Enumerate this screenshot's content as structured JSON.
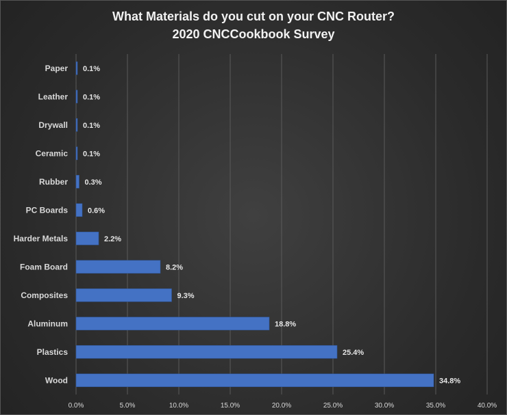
{
  "chart_data": {
    "type": "bar",
    "orientation": "horizontal",
    "title": "What Materials do you cut on your CNC Router?",
    "subtitle": "2020 CNCCookbook Survey",
    "categories": [
      "Paper",
      "Leather",
      "Drywall",
      "Ceramic",
      "Rubber",
      "PC Boards",
      "Harder Metals",
      "Foam Board",
      "Composites",
      "Aluminum",
      "Plastics",
      "Wood"
    ],
    "values": [
      0.1,
      0.1,
      0.1,
      0.1,
      0.3,
      0.6,
      2.2,
      8.2,
      9.3,
      18.8,
      25.4,
      34.8
    ],
    "value_labels": [
      "0.1%",
      "0.1%",
      "0.1%",
      "0.1%",
      "0.3%",
      "0.6%",
      "2.2%",
      "8.2%",
      "9.3%",
      "18.8%",
      "25.4%",
      "34.8%"
    ],
    "x_ticks": [
      "0.0%",
      "5.0%",
      "10.0%",
      "15.0%",
      "20.0%",
      "25.0%",
      "30.0%",
      "35.0%",
      "40.0%"
    ],
    "xlim": [
      0,
      40
    ],
    "xlabel": "",
    "ylabel": "",
    "grid": true,
    "legend": "none",
    "colors": {
      "bar": "#4472c4",
      "bar_edge": "#2f5597",
      "background": "#2e2e2e",
      "text": "#d9d9d9"
    }
  }
}
